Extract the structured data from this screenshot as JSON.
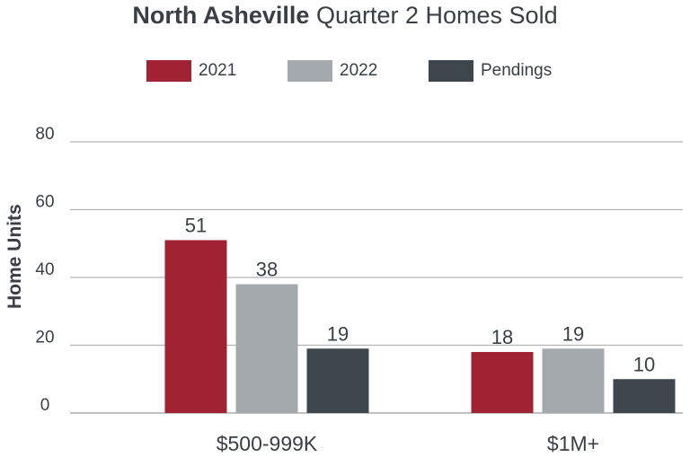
{
  "title": {
    "bold": "North Asheville",
    "regular": "Quarter 2 Homes Sold"
  },
  "chart_data": {
    "type": "bar",
    "categories": [
      "$500-999K",
      "$1M+"
    ],
    "series": [
      {
        "name": "2021",
        "values": [
          51,
          18
        ],
        "color": "#a12232"
      },
      {
        "name": "2022",
        "values": [
          38,
          19
        ],
        "color": "#a4a9ad"
      },
      {
        "name": "Pendings",
        "values": [
          19,
          10
        ],
        "color": "#3f474e"
      }
    ],
    "title": "North Asheville Quarter 2 Homes Sold",
    "xlabel": "",
    "ylabel": "Home Units",
    "ylim": [
      0,
      80
    ],
    "yticks": [
      0,
      20,
      40,
      60,
      80
    ],
    "grid": true,
    "legend": "top-center"
  }
}
